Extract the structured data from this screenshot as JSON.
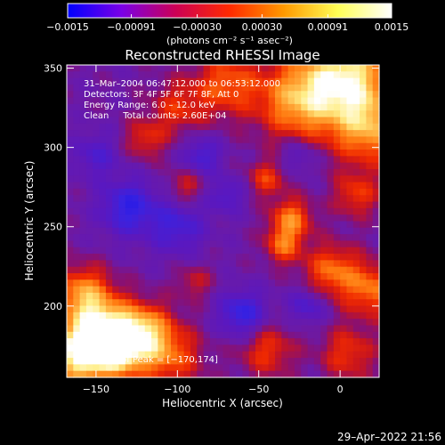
{
  "chart_data": {
    "type": "heatmap",
    "title": "Reconstructed RHESSI Image",
    "xlabel": "Heliocentric X (arcsec)",
    "ylabel": "Heliocentric Y (arcsec)",
    "xlim": [
      -168,
      24
    ],
    "ylim": [
      155,
      352
    ],
    "xticks": [
      -150,
      -100,
      -50,
      0
    ],
    "xtick_labels": [
      "−150",
      "−100",
      "−50",
      "0"
    ],
    "yticks": [
      200,
      250,
      300,
      350
    ],
    "ytick_labels": [
      "200",
      "250",
      "300",
      "350"
    ],
    "colorbar": {
      "range": [
        -0.0015,
        0.0015
      ],
      "ticks": [
        -0.0015,
        -0.00091,
        -0.0003,
        0.0003,
        0.00091,
        0.0015
      ],
      "tick_labels": [
        "−0.0015",
        "−0.00091",
        "−0.00030",
        "0.00030",
        "0.00091",
        "0.0015"
      ],
      "units": "(photons cm⁻² s⁻¹ asec⁻²)",
      "colors": [
        "#0000ff",
        "#7a00e6",
        "#cc0055",
        "#ff2a00",
        "#ff9900",
        "#ffff55",
        "#ffffff"
      ]
    },
    "annotations": {
      "line1": "31–Mar–2004 06:47:12.000 to 06:53:12.000",
      "line2": "Detectors: 3F 4F 5F 6F 7F 8F, Att 0",
      "line3": "Energy Range: 6.0 – 12.0 keV",
      "line4": "Clean     Total counts: 2.60E+04",
      "peak": "Position of Peak = [−170,174]"
    },
    "peak_position": [
      -170,
      174
    ],
    "blobs": [
      {
        "x": -160,
        "y": 170,
        "v": 1.05,
        "s": 14
      },
      {
        "x": -145,
        "y": 185,
        "v": 0.85,
        "s": 14
      },
      {
        "x": -158,
        "y": 208,
        "v": 0.7,
        "s": 12
      },
      {
        "x": -120,
        "y": 185,
        "v": 0.65,
        "s": 12
      },
      {
        "x": -135,
        "y": 172,
        "v": 0.75,
        "s": 12
      },
      {
        "x": -105,
        "y": 168,
        "v": 0.55,
        "s": 14
      },
      {
        "x": 5,
        "y": 345,
        "v": 0.95,
        "s": 18
      },
      {
        "x": -25,
        "y": 330,
        "v": 0.8,
        "s": 18
      },
      {
        "x": 18,
        "y": 312,
        "v": 0.75,
        "s": 16
      },
      {
        "x": -70,
        "y": 340,
        "v": 0.55,
        "s": 14
      },
      {
        "x": -100,
        "y": 325,
        "v": 0.4,
        "s": 12
      },
      {
        "x": -30,
        "y": 255,
        "v": 0.65,
        "s": 9
      },
      {
        "x": -35,
        "y": 238,
        "v": 0.55,
        "s": 8
      },
      {
        "x": -5,
        "y": 222,
        "v": 0.6,
        "s": 12
      },
      {
        "x": 20,
        "y": 210,
        "v": 0.6,
        "s": 12
      },
      {
        "x": -45,
        "y": 280,
        "v": 0.45,
        "s": 8
      },
      {
        "x": -120,
        "y": 305,
        "v": 0.4,
        "s": 9
      },
      {
        "x": -95,
        "y": 275,
        "v": 0.35,
        "s": 8
      },
      {
        "x": 10,
        "y": 270,
        "v": 0.45,
        "s": 10
      },
      {
        "x": -90,
        "y": 215,
        "v": 0.3,
        "s": 8
      },
      {
        "x": -45,
        "y": 172,
        "v": 0.45,
        "s": 12
      },
      {
        "x": 5,
        "y": 170,
        "v": 0.45,
        "s": 12
      },
      {
        "x": -130,
        "y": 262,
        "v": -0.6,
        "s": 12
      },
      {
        "x": -100,
        "y": 250,
        "v": -0.45,
        "s": 12
      },
      {
        "x": -60,
        "y": 195,
        "v": -0.6,
        "s": 10
      },
      {
        "x": -85,
        "y": 295,
        "v": -0.45,
        "s": 8
      },
      {
        "x": -70,
        "y": 270,
        "v": -0.35,
        "s": 8
      },
      {
        "x": -20,
        "y": 200,
        "v": -0.4,
        "s": 8
      },
      {
        "x": -150,
        "y": 295,
        "v": -0.35,
        "s": 10
      },
      {
        "x": -25,
        "y": 295,
        "v": -0.3,
        "s": 8
      }
    ]
  },
  "footer": {
    "timestamp": "29–Apr–2022 21:56"
  }
}
